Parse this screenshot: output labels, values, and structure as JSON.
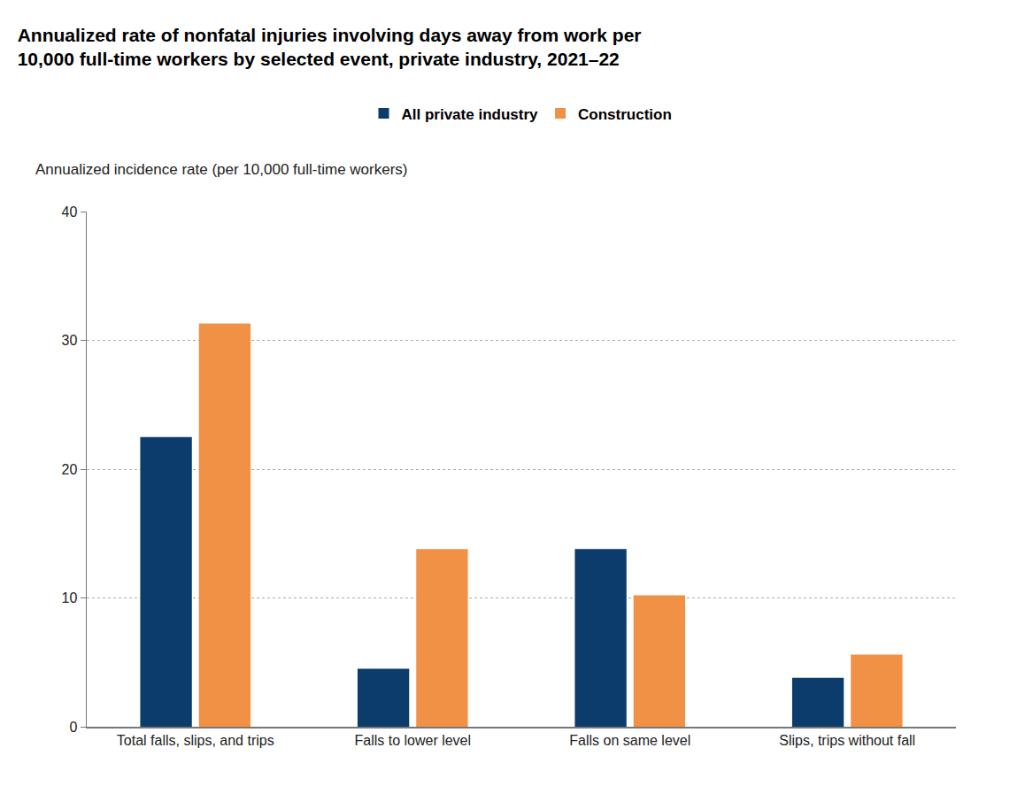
{
  "chart_data": {
    "type": "bar",
    "title": "Annualized rate of nonfatal injuries involving days away from work per\n10,000 full-time workers by selected event, private industry, 2021–22",
    "ylabel": "Annualized incidence rate (per 10,000 full-time workers)",
    "categories": [
      "Total falls, slips, and trips",
      "Falls to lower level",
      "Falls on same level",
      "Slips, trips without fall"
    ],
    "series": [
      {
        "name": "All private industry",
        "color": "#0b3c6b",
        "values": [
          22.5,
          4.5,
          13.8,
          3.8
        ]
      },
      {
        "name": "Construction",
        "color": "#f19146",
        "values": [
          31.3,
          13.8,
          10.2,
          5.6
        ]
      }
    ],
    "ylim": [
      0,
      40
    ],
    "yticks": [
      0,
      10,
      20,
      30,
      40
    ],
    "grid": true,
    "legend": "top"
  }
}
